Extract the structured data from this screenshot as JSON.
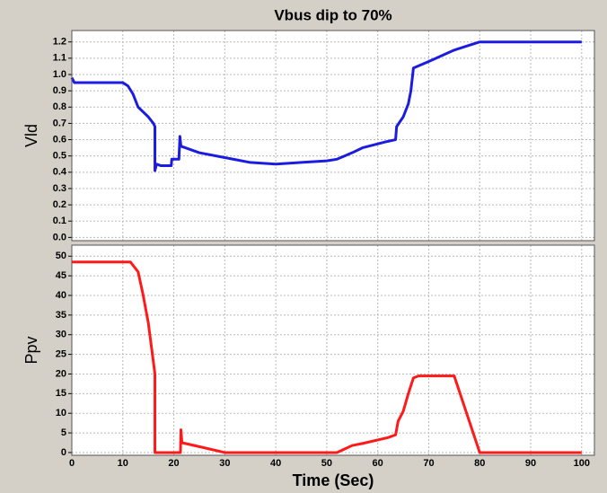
{
  "chart_data": [
    {
      "type": "line",
      "title": "Vbus dip to 70%",
      "ylabel": "Vld",
      "xlim": [
        0,
        102.5
      ],
      "ylim": [
        -0.02,
        1.27
      ],
      "yticks": [
        {
          "value": 0,
          "label": "0.0"
        },
        0.1,
        0.2,
        0.3,
        0.4,
        0.5,
        0.6,
        0.7,
        0.8,
        0.9,
        {
          "value": 1,
          "label": "1.0"
        },
        1.1,
        1.2
      ],
      "grid": true,
      "x": [
        0,
        0.5,
        10,
        11,
        12,
        13,
        14,
        15,
        16,
        16.3,
        16.3,
        16.6,
        17.5,
        19.5,
        19.6,
        21,
        21.2,
        21.4,
        25,
        30,
        35,
        40,
        45,
        50,
        52,
        55,
        57,
        62,
        63.5,
        63.7,
        65,
        66,
        66.5,
        67,
        70,
        75,
        80,
        100
      ],
      "series": [
        {
          "color": "#1c1ce0",
          "values": [
            0.98,
            0.95,
            0.95,
            0.93,
            0.88,
            0.8,
            0.77,
            0.74,
            0.7,
            0.68,
            0.41,
            0.45,
            0.44,
            0.44,
            0.48,
            0.48,
            0.62,
            0.56,
            0.52,
            0.49,
            0.46,
            0.45,
            0.46,
            0.47,
            0.48,
            0.52,
            0.55,
            0.59,
            0.6,
            0.68,
            0.74,
            0.82,
            0.9,
            1.04,
            1.08,
            1.15,
            1.2,
            1.2
          ]
        }
      ]
    },
    {
      "type": "line",
      "ylabel": "Ppv",
      "xlabel": "Time (Sec)",
      "xlim": [
        0,
        102.5
      ],
      "ylim": [
        -0.7,
        52.8
      ],
      "xticks": [
        0,
        10,
        20,
        30,
        40,
        50,
        60,
        70,
        80,
        90,
        100
      ],
      "yticks": [
        0,
        5,
        10,
        15,
        20,
        25,
        30,
        35,
        40,
        45,
        50
      ],
      "grid": true,
      "x": [
        0,
        11.5,
        13,
        14,
        15,
        16,
        16.3,
        16.3,
        21.3,
        21.4,
        21.6,
        25,
        30,
        52,
        55,
        57,
        62,
        63.5,
        64,
        65,
        66,
        67,
        68,
        75,
        80,
        100
      ],
      "series": [
        {
          "color": "#ff1a1a",
          "values": [
            48.5,
            48.5,
            46,
            40,
            33,
            23,
            20,
            0,
            0,
            5.8,
            2.5,
            1.5,
            0,
            0,
            1.8,
            2.3,
            3.8,
            4.5,
            8,
            10.5,
            15,
            19,
            19.5,
            19.5,
            0,
            0
          ]
        }
      ]
    }
  ]
}
